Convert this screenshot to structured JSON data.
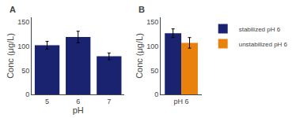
{
  "chart_data": [
    {
      "type": "bar",
      "title": "A",
      "categories": [
        "5",
        "6",
        "7"
      ],
      "values": [
        102,
        119,
        79
      ],
      "errors": [
        8,
        12,
        7
      ],
      "color": "#1a2370",
      "xlabel": "pH",
      "ylabel": "Conc (μg/L)",
      "ylim": [
        0,
        160
      ],
      "yticks": [
        0,
        50,
        100,
        150
      ],
      "grid": false
    },
    {
      "type": "bar",
      "title": "B",
      "categories": [
        "pH 6"
      ],
      "series": [
        {
          "name": "stabilized pH 6",
          "color": "#1a2370",
          "values": [
            127
          ],
          "errors": [
            9
          ]
        },
        {
          "name": "unstabilized pH 6",
          "color": "#e8820c",
          "values": [
            107
          ],
          "errors": [
            11
          ]
        }
      ],
      "ylabel": "Conc (μg/L)",
      "ylim": [
        0,
        160
      ],
      "yticks": [
        0,
        50,
        100,
        150
      ],
      "grid": false,
      "legend": "upper right"
    }
  ]
}
